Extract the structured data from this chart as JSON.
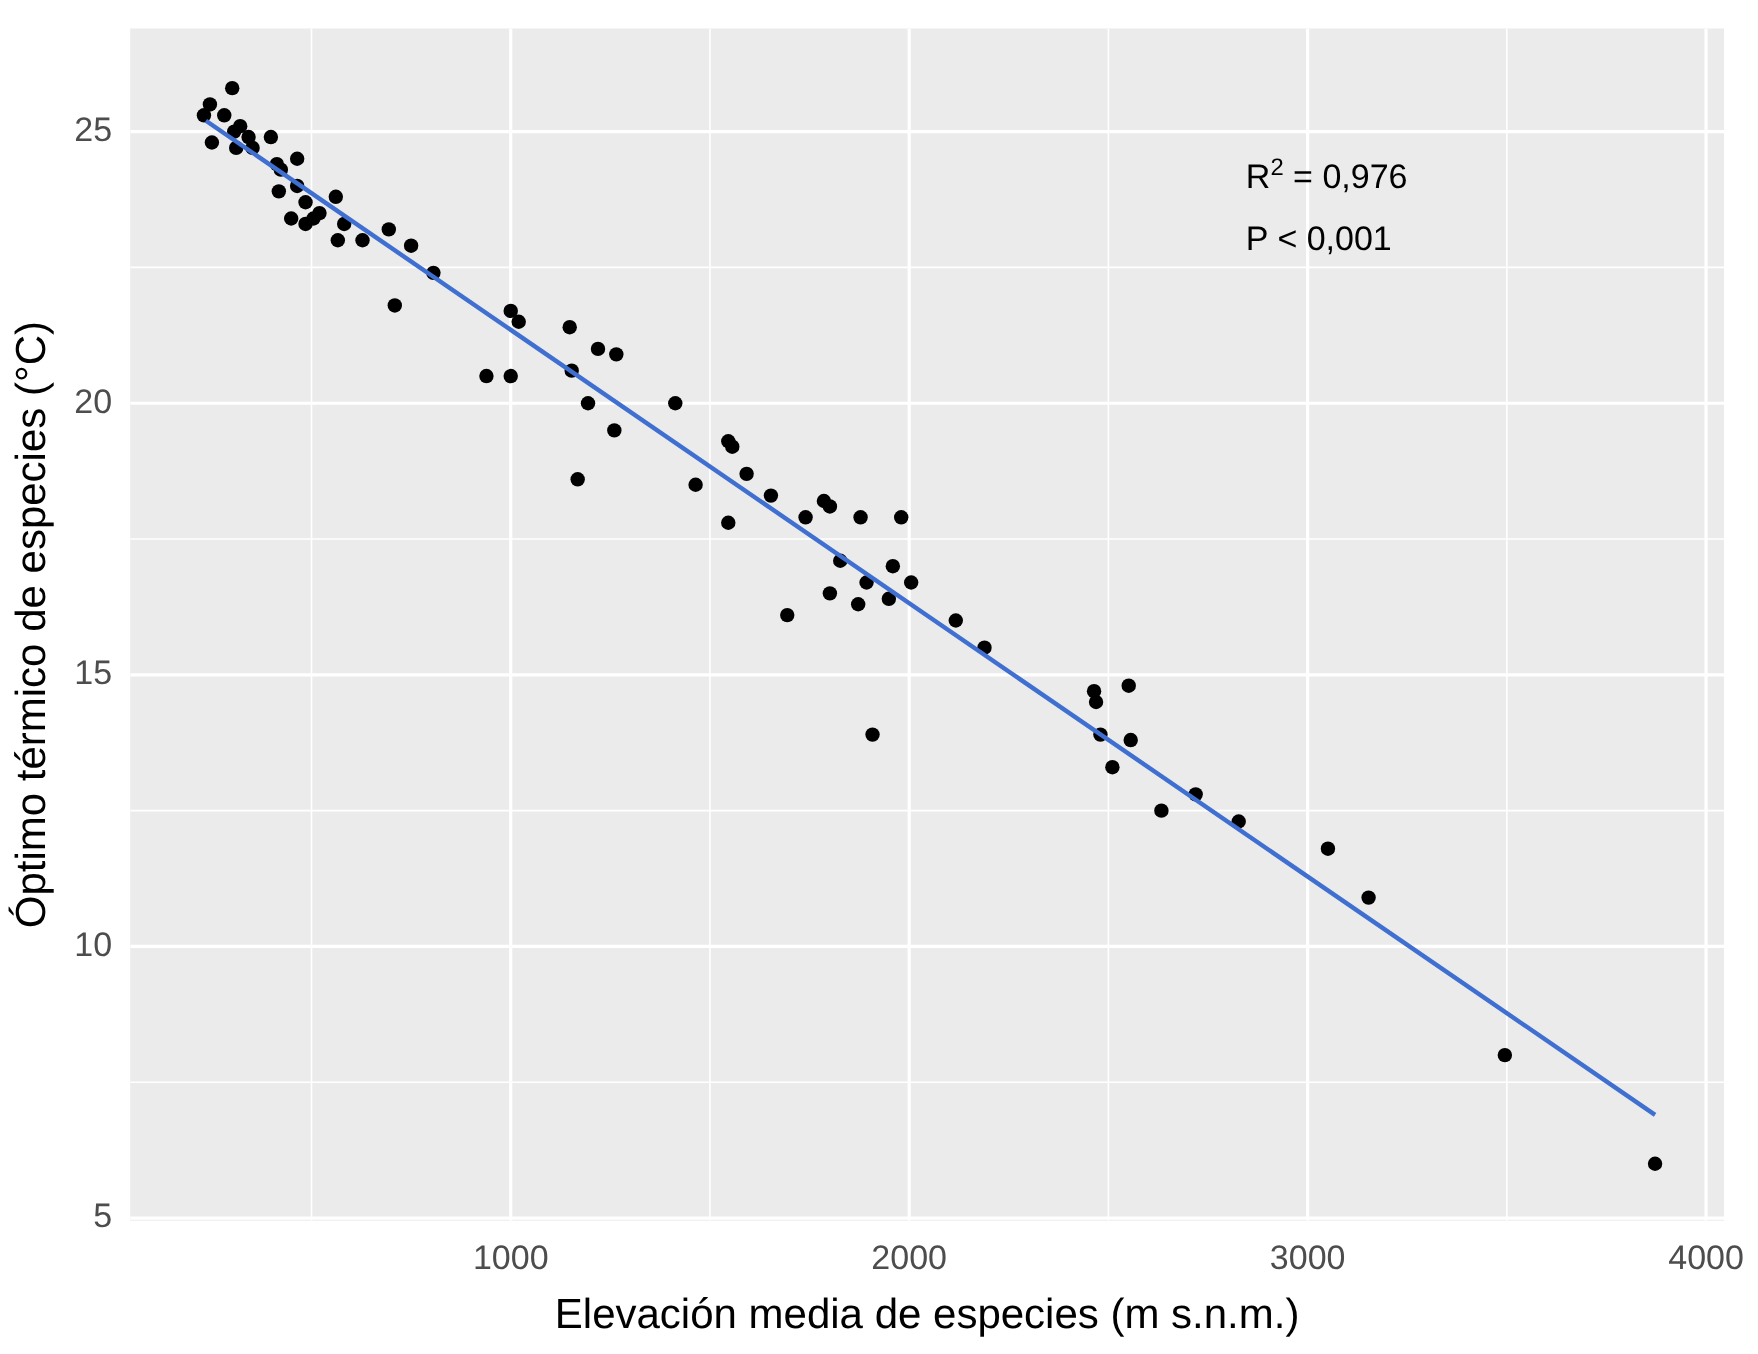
{
  "chart_data": {
    "type": "scatter",
    "xlabel": "Elevación media de especies (m s.n.m.)",
    "ylabel": "Óptimo térmico de especies (°C)",
    "xlim": [
      45,
      4045
    ],
    "ylim": [
      4.95,
      26.9
    ],
    "xticks": [
      1000,
      2000,
      3000,
      4000
    ],
    "yticks": [
      5,
      10,
      15,
      20,
      25
    ],
    "grid": true,
    "marker": "circle",
    "annotations": [
      "R$^{2}$ = 0,976",
      "P < 0,001"
    ],
    "series": [
      {
        "type": "scatter",
        "color": "#000000",
        "x": [
          230,
          245,
          301,
          250,
          281,
          306,
          321,
          342,
          311,
          352,
          398,
          413,
          464,
          423,
          418,
          464,
          485,
          449,
          485,
          505,
          520,
          561,
          582,
          566,
          628,
          694,
          750,
          806,
          709,
          1000,
          1020,
          939,
          1000,
          1148,
          1219,
          1265,
          1153,
          1194,
          1260,
          1413,
          1168,
          1546,
          1556,
          1592,
          1464,
          1653,
          1546,
          1740,
          1786,
          1801,
          1878,
          1980,
          1827,
          1959,
          1893,
          2005,
          1801,
          1872,
          1949,
          1694,
          2117,
          2189,
          1908,
          2464,
          2469,
          2551,
          2480,
          2556,
          2510,
          2633,
          2719,
          2827,
          3051,
          3153,
          3495,
          3872
        ],
        "values": [
          25.3,
          25.5,
          25.8,
          24.8,
          25.3,
          25.0,
          25.1,
          24.9,
          24.7,
          24.7,
          24.9,
          24.4,
          24.5,
          24.3,
          23.9,
          24.0,
          23.7,
          23.4,
          23.3,
          23.4,
          23.5,
          23.8,
          23.3,
          23.0,
          23.0,
          23.2,
          22.9,
          22.4,
          21.8,
          21.7,
          21.5,
          20.5,
          20.5,
          21.4,
          21.0,
          20.9,
          20.6,
          20.0,
          19.5,
          20.0,
          18.6,
          19.3,
          19.2,
          18.7,
          18.5,
          18.3,
          17.8,
          17.9,
          18.2,
          18.1,
          17.9,
          17.9,
          17.1,
          17.0,
          16.7,
          16.7,
          16.5,
          16.3,
          16.4,
          16.1,
          16.0,
          15.5,
          13.9,
          14.7,
          14.5,
          14.8,
          13.9,
          13.8,
          13.3,
          12.5,
          12.8,
          12.3,
          11.8,
          10.9,
          8.0,
          6.0
        ]
      },
      {
        "type": "line",
        "color": "#3f6fd0",
        "x": [
          235,
          3872
        ],
        "values": [
          25.2,
          6.9
        ],
        "marker": "none",
        "line_style": "solid"
      }
    ]
  }
}
